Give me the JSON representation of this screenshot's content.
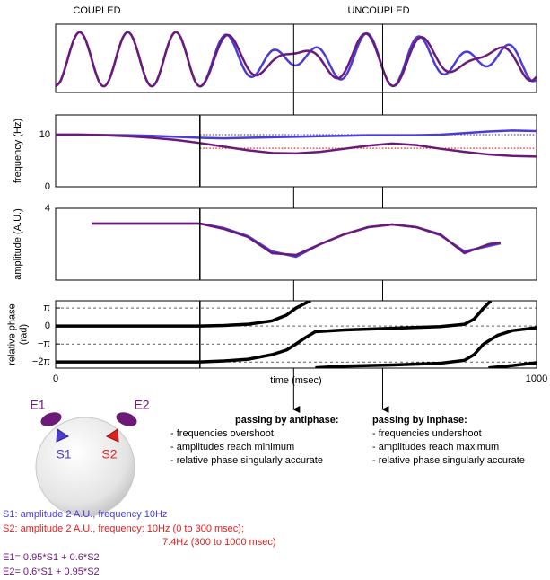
{
  "headers": {
    "coupled": "COUPLED",
    "uncoupled": "UNCOUPLED"
  },
  "chart_data": [
    {
      "type": "line",
      "smooth": true,
      "xlim": [
        0,
        1000
      ],
      "ylim": [
        -3.8,
        4.0
      ],
      "event_lines": [
        495,
        680
      ],
      "x": [
        0,
        10,
        20,
        30,
        40,
        50,
        60,
        70,
        80,
        90,
        100,
        110,
        120,
        130,
        140,
        150,
        160,
        170,
        180,
        190,
        200,
        210,
        220,
        230,
        240,
        250,
        260,
        270,
        280,
        290,
        300,
        310,
        320,
        330,
        340,
        350,
        360,
        370,
        380,
        390,
        400,
        410,
        420,
        430,
        440,
        450,
        460,
        470,
        480,
        490,
        500,
        510,
        520,
        530,
        540,
        550,
        560,
        570,
        580,
        590,
        600,
        610,
        620,
        630,
        640,
        650,
        660,
        670,
        680,
        690,
        700,
        710,
        720,
        730,
        740,
        750,
        760,
        770,
        780,
        790,
        800,
        810,
        820,
        830,
        840,
        850,
        860,
        870,
        880,
        890,
        900,
        910,
        920,
        930,
        940,
        950,
        960,
        970,
        980,
        990,
        1000
      ],
      "series": [
        {
          "color": "#4b3cd6",
          "values": [
            -3.1,
            -2.51,
            -0.96,
            0.96,
            2.51,
            3.1,
            2.51,
            0.96,
            -0.96,
            -2.51,
            -3.1,
            -2.51,
            -0.96,
            0.96,
            2.51,
            3.1,
            2.51,
            0.96,
            -0.96,
            -2.51,
            -3.1,
            -2.51,
            -0.96,
            0.96,
            2.51,
            3.1,
            2.51,
            0.96,
            -0.96,
            -2.51,
            -3.1,
            -2.61,
            -1.31,
            0.38,
            1.88,
            2.72,
            2.67,
            1.78,
            0.41,
            -0.93,
            -1.82,
            -2.01,
            -1.51,
            -0.58,
            0.37,
            0.98,
            1.05,
            0.65,
            0.01,
            -0.54,
            -0.71,
            -0.41,
            0.25,
            0.94,
            1.34,
            1.19,
            0.47,
            -0.61,
            -1.67,
            -2.27,
            -2.12,
            -1.21,
            0.22,
            1.71,
            2.73,
            2.91,
            2.16,
            0.68,
            -1.05,
            -2.45,
            -3.06,
            -2.71,
            -1.53,
            0.09,
            1.59,
            2.48,
            2.53,
            1.78,
            0.55,
            -0.69,
            -1.53,
            -1.72,
            -1.29,
            -0.47,
            0.34,
            0.81,
            0.8,
            0.35,
            -0.28,
            -0.74,
            -0.78,
            -0.35,
            0.43,
            1.22,
            1.65,
            1.46,
            0.65,
            -0.57,
            -1.77,
            -2.48,
            -2.41
          ]
        },
        {
          "color": "#6b1a78",
          "values": [
            -3.1,
            -2.51,
            -0.96,
            0.96,
            2.51,
            3.1,
            2.51,
            0.96,
            -0.96,
            -2.51,
            -3.1,
            -2.51,
            -0.96,
            0.96,
            2.51,
            3.1,
            2.51,
            0.96,
            -0.96,
            -2.51,
            -3.1,
            -2.51,
            -0.96,
            0.96,
            2.51,
            3.1,
            2.51,
            0.96,
            -0.96,
            -2.51,
            -3.1,
            -2.67,
            -1.51,
            0.04,
            1.51,
            2.5,
            2.76,
            2.26,
            1.21,
            -0.01,
            -1.08,
            -1.71,
            -1.83,
            -1.47,
            -0.88,
            -0.26,
            0.2,
            0.47,
            0.57,
            0.61,
            0.68,
            0.82,
            0.95,
            0.93,
            0.66,
            0.08,
            -0.72,
            -1.53,
            -2.08,
            -2.13,
            -1.55,
            -0.45,
            0.91,
            2.15,
            2.86,
            2.81,
            1.95,
            0.52,
            -1.09,
            -2.41,
            -3.04,
            -2.83,
            -1.85,
            -0.42,
            1.05,
            2.11,
            2.54,
            2.25,
            1.42,
            0.37,
            -0.61,
            -1.26,
            -1.47,
            -1.3,
            -0.93,
            -0.52,
            -0.21,
            -0.01,
            0.12,
            0.29,
            0.57,
            0.92,
            1.24,
            1.37,
            1.14,
            0.5,
            -0.44,
            -1.46,
            -2.23,
            -2.46,
            -2.01
          ]
        }
      ]
    },
    {
      "type": "line",
      "ylabel": "frequency (Hz)",
      "xlim": [
        0,
        1000
      ],
      "ylim": [
        0,
        13.8
      ],
      "yticks": [
        0,
        10
      ],
      "vline": 300,
      "ref_lines": [
        {
          "value": 10,
          "from": 300,
          "color": "#4b3cd6"
        },
        {
          "value": 7.4,
          "from": 300,
          "color": "#e02020"
        }
      ],
      "x": [
        0,
        50,
        100,
        150,
        200,
        250,
        300,
        350,
        400,
        450,
        500,
        550,
        600,
        650,
        700,
        750,
        800,
        850,
        900,
        950,
        1000
      ],
      "series": [
        {
          "color": "#4b3cd6",
          "values": [
            10,
            10,
            9.95,
            9.9,
            9.8,
            9.6,
            9.4,
            9.3,
            9.4,
            9.5,
            9.6,
            9.7,
            9.8,
            9.9,
            9.9,
            9.9,
            10.0,
            10.3,
            10.6,
            10.8,
            10.7
          ]
        },
        {
          "color": "#6b1a78",
          "values": [
            10,
            10,
            9.9,
            9.7,
            9.4,
            9.0,
            8.4,
            7.7,
            7.0,
            6.5,
            6.4,
            6.7,
            7.3,
            7.9,
            8.3,
            8.0,
            7.3,
            6.7,
            6.2,
            5.9,
            5.8
          ]
        }
      ]
    },
    {
      "type": "line",
      "ylabel": "amplitude (A.U.)",
      "xlim": [
        0,
        1000
      ],
      "ylim": [
        0,
        4
      ],
      "yticks": [
        4
      ],
      "vline": 300,
      "x": [
        75,
        100,
        150,
        200,
        250,
        300,
        350,
        400,
        450,
        500,
        550,
        600,
        650,
        700,
        750,
        800,
        850,
        900,
        925
      ],
      "series": [
        {
          "color": "#4b3cd6",
          "values": [
            3.15,
            3.15,
            3.15,
            3.15,
            3.15,
            3.15,
            2.9,
            2.45,
            1.6,
            1.3,
            2.0,
            2.55,
            2.95,
            3.1,
            2.95,
            2.5,
            1.6,
            1.9,
            2.05
          ]
        },
        {
          "color": "#6b1a78",
          "values": [
            3.15,
            3.15,
            3.15,
            3.15,
            3.15,
            3.15,
            2.85,
            2.4,
            1.5,
            1.4,
            2.0,
            2.55,
            2.95,
            3.1,
            2.95,
            2.55,
            1.5,
            2.0,
            2.1
          ]
        }
      ]
    },
    {
      "type": "line",
      "ylabel": [
        "relative phase",
        "(rad)"
      ],
      "xlabel": "time (msec)",
      "xlim": [
        0,
        1000
      ],
      "ylim": [
        -7.35,
        4.4
      ],
      "xticks": [
        0,
        1000
      ],
      "grid": "dashed",
      "vline": 300,
      "yticks": [
        {
          "value": 3.1416,
          "label": "π"
        },
        0,
        {
          "value": -3.1416,
          "label": "−π"
        },
        {
          "value": -6.2832,
          "label": "−2π"
        }
      ],
      "series": [
        {
          "color": "#000000",
          "x": [
            0,
            100,
            200,
            300,
            350,
            400,
            450,
            480,
            500,
            520,
            530
          ],
          "values": [
            0,
            0,
            0,
            0,
            0.1,
            0.3,
            0.9,
            1.9,
            3.14,
            4.0,
            4.4
          ]
        },
        {
          "color": "#000000",
          "x": [
            0,
            100,
            200,
            300,
            350,
            400,
            450,
            480,
            500,
            520,
            540,
            600,
            700,
            800,
            850,
            870,
            890,
            905
          ],
          "values": [
            -6.28,
            -6.28,
            -6.28,
            -6.28,
            -6.1,
            -5.8,
            -5.0,
            -4.2,
            -3.14,
            -2.0,
            -1.0,
            -0.7,
            -0.4,
            -0.1,
            0.3,
            1.2,
            3.14,
            4.4
          ]
        },
        {
          "color": "#000000",
          "x": [
            540,
            600,
            700,
            800,
            850,
            870,
            890,
            920,
            950,
            1000
          ],
          "values": [
            -7.3,
            -7.0,
            -6.8,
            -6.5,
            -6.0,
            -5.0,
            -3.14,
            -1.6,
            -0.8,
            -0.3
          ]
        },
        {
          "color": "#000000",
          "x": [
            900,
            950,
            1000
          ],
          "values": [
            -7.3,
            -6.9,
            -6.4
          ]
        }
      ]
    }
  ],
  "notes": [
    {
      "title": "passing by antiphase:",
      "items": [
        "- frequencies overshoot",
        "- amplitudes reach minimum",
        "- relative phase singularly accurate"
      ]
    },
    {
      "title": "passing by inphase:",
      "items": [
        "- frequencies undershoot",
        "- amplitudes reach maximum",
        "- relative phase singularly accurate"
      ]
    }
  ],
  "diagram": {
    "e1": "E1",
    "e2": "E2",
    "s1": "S1",
    "s2": "S2"
  },
  "caption": [
    "S1: amplitude 2 A.U., frequency 10Hz",
    "S2: amplitude 2 A.U., frequency: 10Hz (0 to 300 msec);",
    "7.4Hz (300 to 1000 msec)",
    "E1= 0.95*S1 + 0.6*S2",
    "E2= 0.6*S1 + 0.95*S2"
  ]
}
